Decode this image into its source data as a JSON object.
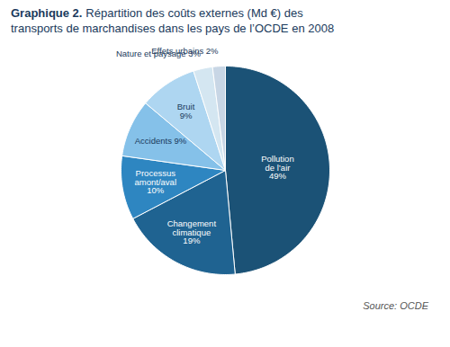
{
  "chart_data": {
    "type": "pie",
    "title": "Graphique 2.",
    "subtitle": "Répartition des coûts externes (Md €) des\ntransports de marchandises dans les pays de l’OCDE en 2008",
    "categories": [
      "Pollution\nde l’air\n49%",
      "Changement\nclimatique\n19%",
      "Processus\namont/aval\n10%",
      "Accidents 9%",
      "Bruit\n9%",
      "Nature et paysage 3%",
      "Effets urbains 2%"
    ],
    "values": [
      49,
      19,
      10,
      9,
      9,
      3,
      2
    ],
    "colors": [
      "#1b5276",
      "#1f6391",
      "#2e86c1",
      "#85c1e9",
      "#aed6f1",
      "#d4e6f1",
      "#c8d6e5"
    ],
    "annotations": [
      "Source: OCDE"
    ]
  }
}
